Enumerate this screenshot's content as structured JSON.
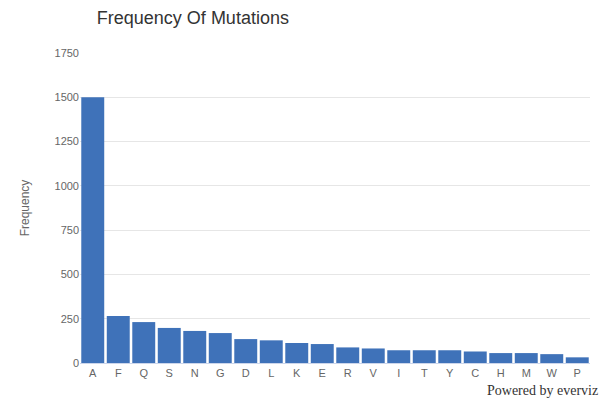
{
  "chart_data": {
    "type": "bar",
    "title": "Frequency Of Mutations",
    "y_label": "Frequency",
    "categories": [
      "A",
      "F",
      "Q",
      "S",
      "N",
      "G",
      "D",
      "L",
      "K",
      "E",
      "R",
      "V",
      "I",
      "T",
      "Y",
      "C",
      "H",
      "M",
      "W",
      "P"
    ],
    "values": [
      1500,
      265,
      231,
      198,
      181,
      169,
      135,
      128,
      113,
      107,
      88,
      82,
      72,
      72,
      72,
      65,
      56,
      56,
      50,
      32
    ],
    "color": "#3f72b9",
    "ylim": [
      0,
      1750
    ],
    "yticks": [
      0,
      250,
      500,
      750,
      1000,
      1250,
      1500,
      1750
    ],
    "grid": true,
    "annotations": [
      "Powered by everviz"
    ]
  }
}
